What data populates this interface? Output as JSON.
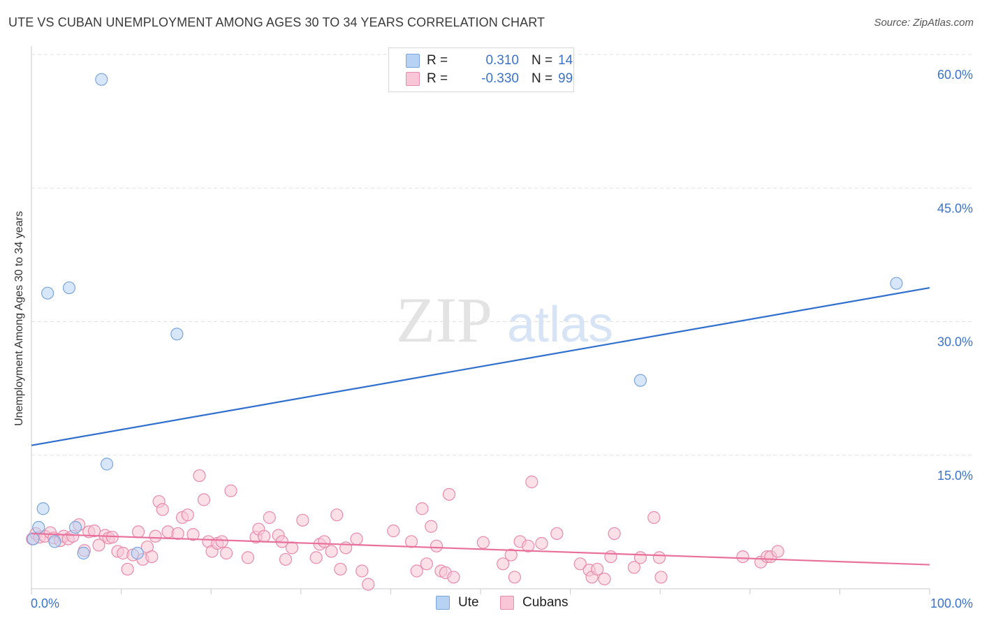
{
  "title": "UTE VS CUBAN UNEMPLOYMENT AMONG AGES 30 TO 34 YEARS CORRELATION CHART",
  "source": "Source: ZipAtlas.com",
  "watermark": {
    "zip": "ZIP",
    "atlas": "atlas"
  },
  "legend": {
    "ute": {
      "r_label": "R =",
      "r_value": "0.310",
      "n_label": "N =",
      "n_value": "14"
    },
    "cubans": {
      "r_label": "R =",
      "r_value": "-0.330",
      "n_label": "N =",
      "n_value": "99"
    }
  },
  "colors": {
    "ute_fill": "#b7d2f3",
    "ute_stroke": "#7aa6dc",
    "ute_line": "#2f6fcd",
    "cubans_fill": "#f8c6d6",
    "cubans_stroke": "#e98aaa",
    "cubans_line": "#e8709a",
    "axis_text": "#3b73c8",
    "grid": "#e2e2e2"
  },
  "chart_data": {
    "type": "scatter",
    "title": "UTE VS CUBAN UNEMPLOYMENT AMONG AGES 30 TO 34 YEARS CORRELATION CHART",
    "xlabel": "",
    "ylabel": "Unemployment Among Ages 30 to 34 years",
    "xlim": [
      0,
      100
    ],
    "ylim": [
      0,
      60
    ],
    "x_tick_labels": [
      "0.0%",
      "100.0%"
    ],
    "y_ticks": [
      15,
      30,
      45,
      60
    ],
    "y_tick_labels": [
      "15.0%",
      "30.0%",
      "45.0%",
      "60.0%"
    ],
    "grid": true,
    "legend_position": "bottom",
    "series": [
      {
        "name": "Ute",
        "points": [
          [
            0.2,
            5.6
          ],
          [
            0.8,
            6.9
          ],
          [
            1.3,
            9.0
          ],
          [
            1.8,
            33.2
          ],
          [
            2.6,
            5.3
          ],
          [
            4.2,
            33.8
          ],
          [
            4.9,
            6.9
          ],
          [
            5.8,
            4.0
          ],
          [
            7.8,
            57.2
          ],
          [
            8.4,
            14.0
          ],
          [
            11.8,
            4.0
          ],
          [
            16.2,
            28.6
          ],
          [
            67.8,
            23.4
          ],
          [
            96.3,
            34.3
          ]
        ],
        "trend": {
          "x0": 0,
          "y0": 16.1,
          "x1": 100,
          "y1": 33.8
        }
      },
      {
        "name": "Cubans",
        "points": [
          [
            0.1,
            5.6
          ],
          [
            0.5,
            6.2
          ],
          [
            0.9,
            5.8
          ],
          [
            1.5,
            5.9
          ],
          [
            2.1,
            6.3
          ],
          [
            2.5,
            5.7
          ],
          [
            3.2,
            5.4
          ],
          [
            3.6,
            5.9
          ],
          [
            4.1,
            5.6
          ],
          [
            4.6,
            5.9
          ],
          [
            5.3,
            7.2
          ],
          [
            5.9,
            4.3
          ],
          [
            6.4,
            6.4
          ],
          [
            7.0,
            6.5
          ],
          [
            7.5,
            4.9
          ],
          [
            8.2,
            6.0
          ],
          [
            8.6,
            5.7
          ],
          [
            9.0,
            5.8
          ],
          [
            9.6,
            4.2
          ],
          [
            10.2,
            4.0
          ],
          [
            10.7,
            2.2
          ],
          [
            11.3,
            3.8
          ],
          [
            11.9,
            6.4
          ],
          [
            12.4,
            3.3
          ],
          [
            12.9,
            4.7
          ],
          [
            13.4,
            3.6
          ],
          [
            13.8,
            5.9
          ],
          [
            14.2,
            9.8
          ],
          [
            14.6,
            8.9
          ],
          [
            15.2,
            6.4
          ],
          [
            16.3,
            6.2
          ],
          [
            16.8,
            8.0
          ],
          [
            17.4,
            8.3
          ],
          [
            18.0,
            6.1
          ],
          [
            18.7,
            12.7
          ],
          [
            19.2,
            10.0
          ],
          [
            19.7,
            5.3
          ],
          [
            20.1,
            4.2
          ],
          [
            20.7,
            5.1
          ],
          [
            21.2,
            5.3
          ],
          [
            21.7,
            4.0
          ],
          [
            22.2,
            11.0
          ],
          [
            24.1,
            3.5
          ],
          [
            25.0,
            5.8
          ],
          [
            25.3,
            6.7
          ],
          [
            25.9,
            5.9
          ],
          [
            26.5,
            8.0
          ],
          [
            27.5,
            6.0
          ],
          [
            27.9,
            5.3
          ],
          [
            28.3,
            3.3
          ],
          [
            29.0,
            4.6
          ],
          [
            30.2,
            7.7
          ],
          [
            31.7,
            3.5
          ],
          [
            32.1,
            5.0
          ],
          [
            32.6,
            5.3
          ],
          [
            33.4,
            4.2
          ],
          [
            34.0,
            8.3
          ],
          [
            34.4,
            2.2
          ],
          [
            35.0,
            4.6
          ],
          [
            36.2,
            5.6
          ],
          [
            36.8,
            2.0
          ],
          [
            37.5,
            0.5
          ],
          [
            40.3,
            6.5
          ],
          [
            42.3,
            5.3
          ],
          [
            42.9,
            2.0
          ],
          [
            43.5,
            9.0
          ],
          [
            44.0,
            2.8
          ],
          [
            44.5,
            7.0
          ],
          [
            45.1,
            4.8
          ],
          [
            45.6,
            2.0
          ],
          [
            46.1,
            1.8
          ],
          [
            46.5,
            10.6
          ],
          [
            47.0,
            1.3
          ],
          [
            50.3,
            5.2
          ],
          [
            52.5,
            2.8
          ],
          [
            53.4,
            3.8
          ],
          [
            53.8,
            1.3
          ],
          [
            54.4,
            5.3
          ],
          [
            55.3,
            4.8
          ],
          [
            55.7,
            12.0
          ],
          [
            56.8,
            5.1
          ],
          [
            58.5,
            6.2
          ],
          [
            61.1,
            2.8
          ],
          [
            62.1,
            2.1
          ],
          [
            62.4,
            1.3
          ],
          [
            63.0,
            2.2
          ],
          [
            63.8,
            1.1
          ],
          [
            64.5,
            3.6
          ],
          [
            64.9,
            6.2
          ],
          [
            67.1,
            2.4
          ],
          [
            67.8,
            3.5
          ],
          [
            69.3,
            8.0
          ],
          [
            69.9,
            3.5
          ],
          [
            70.1,
            1.3
          ],
          [
            79.2,
            3.6
          ],
          [
            81.2,
            3.0
          ],
          [
            81.9,
            3.6
          ],
          [
            82.3,
            3.6
          ],
          [
            83.1,
            4.2
          ]
        ],
        "trend": {
          "x0": 0,
          "y0": 6.2,
          "x1": 100,
          "y1": 2.7
        }
      }
    ]
  },
  "bottom_legend": {
    "ute": "Ute",
    "cubans": "Cubans"
  }
}
